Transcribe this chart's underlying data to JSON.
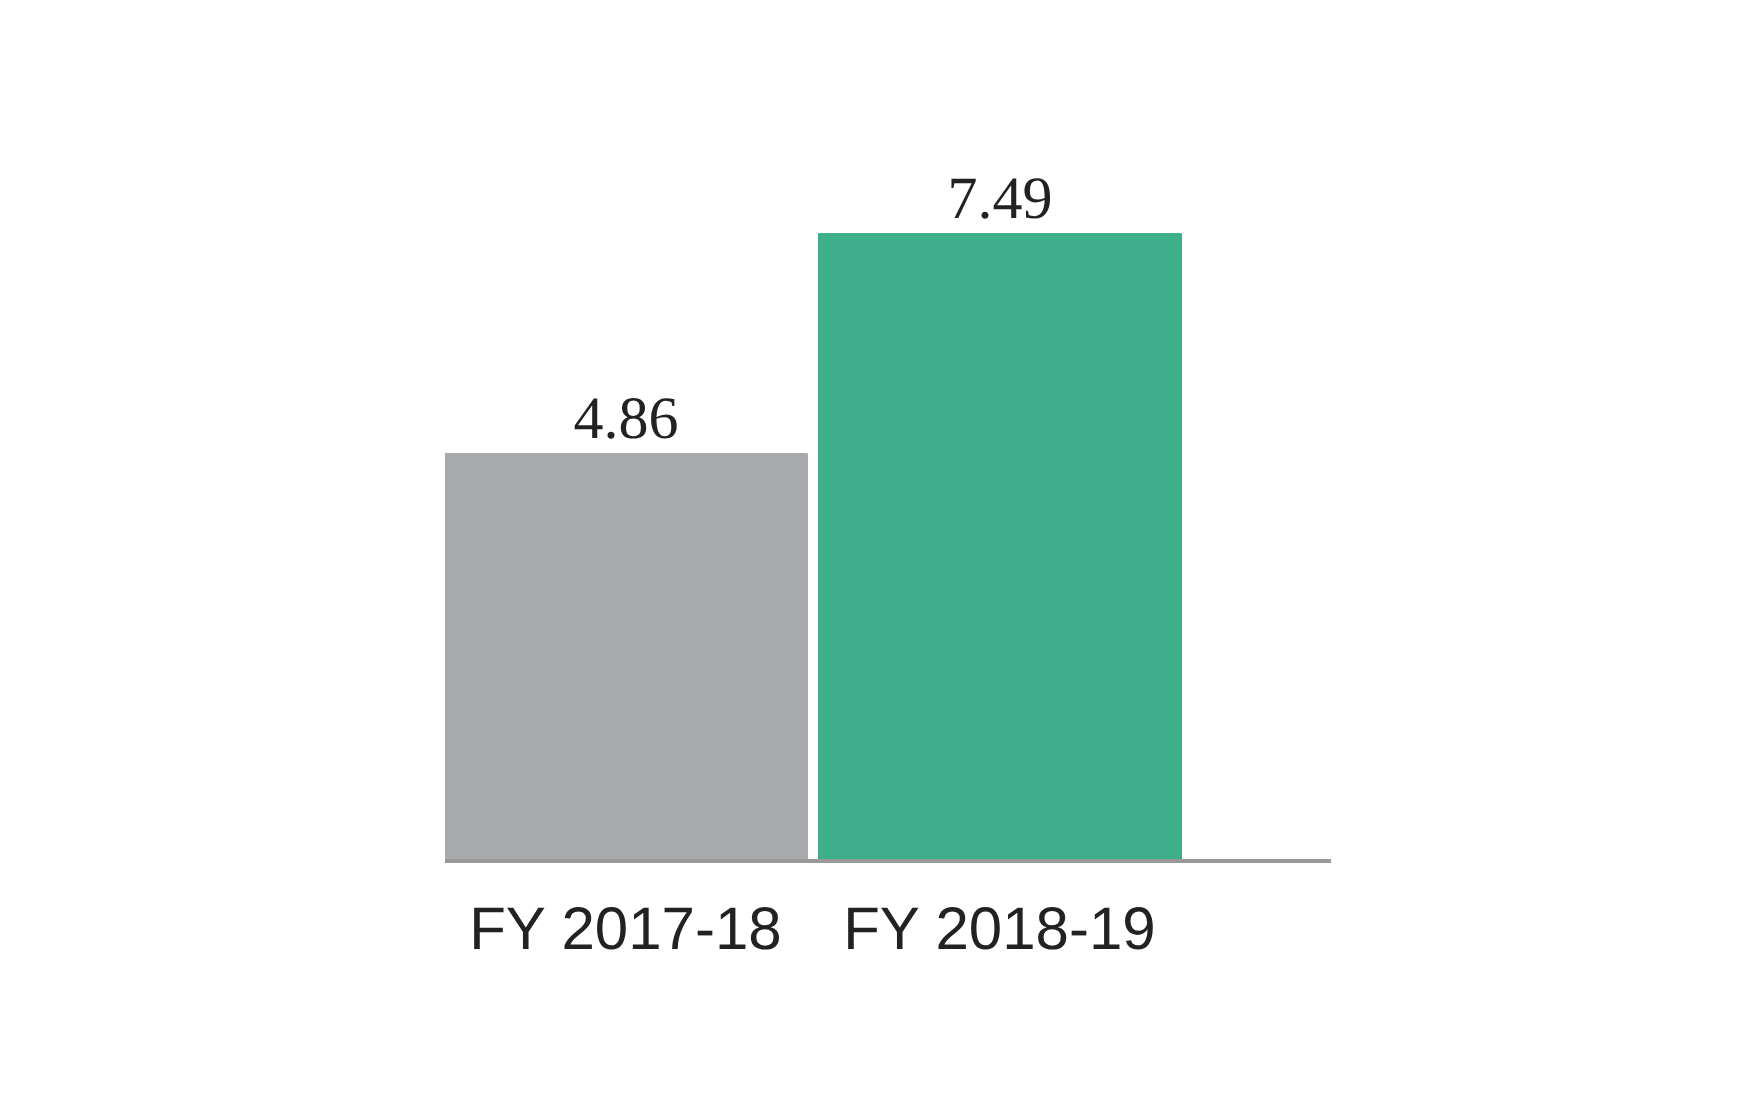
{
  "chart_data": {
    "type": "bar",
    "categories": [
      "FY 2017-18",
      "FY 2018-19"
    ],
    "values": [
      4.86,
      7.49
    ],
    "colors": [
      "#a9aaad",
      "#3fae8a"
    ],
    "data_labels": true,
    "grid": false
  }
}
